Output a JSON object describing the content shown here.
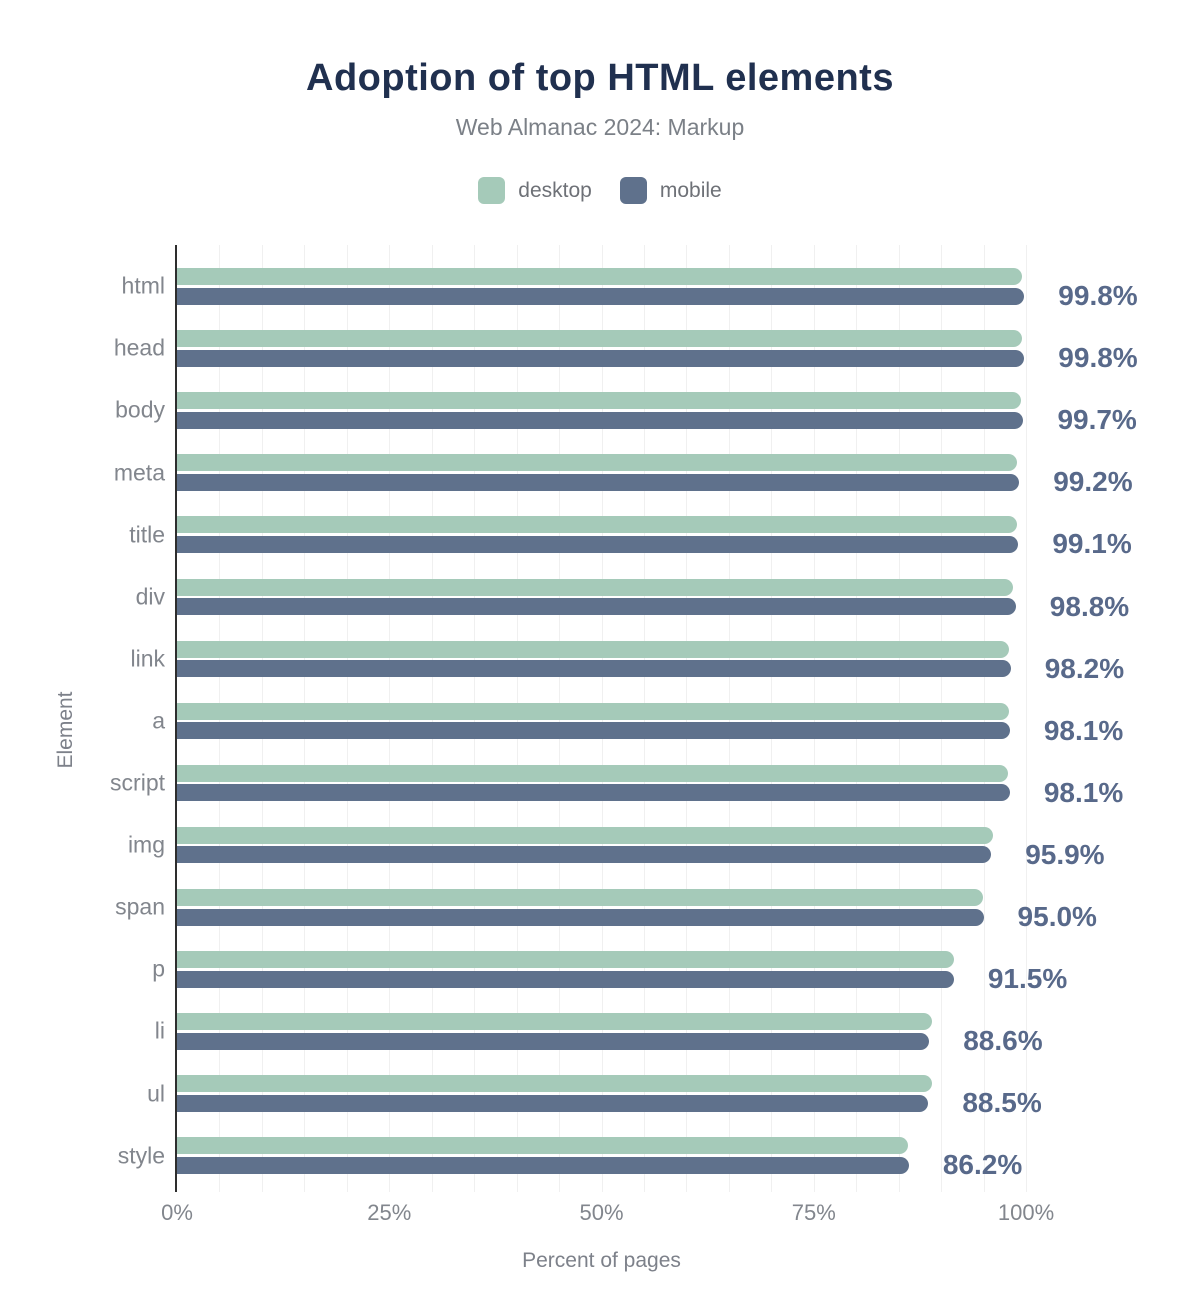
{
  "title": "Adoption of top HTML elements",
  "subtitle": "Web Almanac 2024: Markup",
  "axes": {
    "x_label": "Percent of pages",
    "y_label": "Element",
    "x_tick_labels": [
      "0%",
      "25%",
      "50%",
      "75%",
      "100%"
    ]
  },
  "legend": {
    "items": [
      {
        "label": "desktop",
        "color": "#a5cab9"
      },
      {
        "label": "mobile",
        "color": "#5f718c"
      }
    ]
  },
  "chart_data": {
    "type": "bar",
    "orientation": "horizontal",
    "title": "Adoption of top HTML elements",
    "subtitle": "Web Almanac 2024: Markup",
    "xlabel": "Percent of pages",
    "ylabel": "Element",
    "xlim": [
      0,
      100
    ],
    "x_tick_labels": [
      "0%",
      "25%",
      "50%",
      "75%",
      "100%"
    ],
    "grid": true,
    "grid_step_pct": 5,
    "legend_position": "top",
    "categories": [
      "html",
      "head",
      "body",
      "meta",
      "title",
      "div",
      "link",
      "a",
      "script",
      "img",
      "span",
      "p",
      "li",
      "ul",
      "style"
    ],
    "series": [
      {
        "name": "desktop",
        "color": "#a5cab9",
        "values": [
          99.5,
          99.5,
          99.4,
          98.9,
          98.9,
          98.5,
          98.0,
          98.0,
          97.9,
          96.1,
          94.9,
          91.5,
          88.9,
          88.9,
          86.1
        ]
      },
      {
        "name": "mobile",
        "color": "#5f718c",
        "values": [
          99.8,
          99.8,
          99.7,
          99.2,
          99.1,
          98.8,
          98.2,
          98.1,
          98.1,
          95.9,
          95.0,
          91.5,
          88.6,
          88.5,
          86.2
        ]
      }
    ],
    "value_labels": [
      "99.8%",
      "99.8%",
      "99.7%",
      "99.2%",
      "99.1%",
      "98.8%",
      "98.2%",
      "98.1%",
      "98.1%",
      "95.9%",
      "95.0%",
      "91.5%",
      "88.6%",
      "88.5%",
      "86.2%"
    ]
  },
  "colors": {
    "background": "#ffffff",
    "title": "#20304f",
    "subtitle": "#7b8087",
    "legend_text": "#6e7177",
    "category_label": "#82868d",
    "tick_label": "#82868d",
    "axis_title": "#7d818a",
    "value_label": "#58698a",
    "axis_line": "#2e2e2e",
    "gridline": "#f0f0f0",
    "desktop_bar": "#a5cab9",
    "mobile_bar": "#5f718c"
  }
}
